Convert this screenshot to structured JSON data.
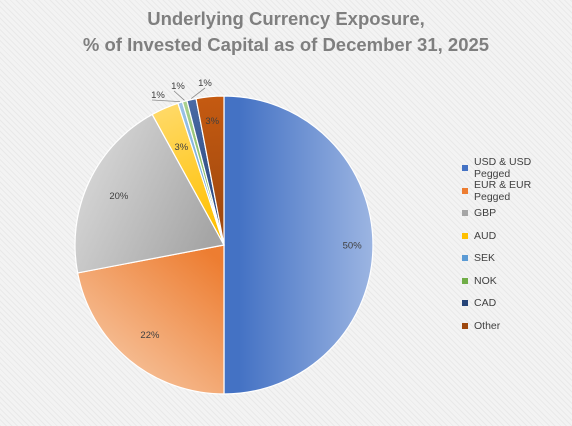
{
  "chart_data": {
    "type": "pie",
    "title_line1": "Underlying Currency Exposure,",
    "title_line2": "% of Invested Capital as of December 31, 2025",
    "start_angle_deg": 0,
    "direction": "clockwise",
    "legend_position": "right",
    "slices": [
      {
        "name": "USD & USD Pegged",
        "value": 50,
        "label": "50%",
        "color_from": "#4472c4",
        "color_to": "#9cb5e2"
      },
      {
        "name": "EUR & EUR Pegged",
        "value": 22,
        "label": "22%",
        "color_from": "#ed7d31",
        "color_to": "#f5b98d"
      },
      {
        "name": "GBP",
        "value": 20,
        "label": "20%",
        "color_from": "#a5a5a5",
        "color_to": "#d2d2d2"
      },
      {
        "name": "AUD",
        "value": 3,
        "label": "3%",
        "color_from": "#ffc000",
        "color_to": "#ffd966"
      },
      {
        "name": "SEK",
        "value": 0.5,
        "label": "1%",
        "color_from": "#5b9bd5",
        "color_to": "#9dc3e6"
      },
      {
        "name": "NOK",
        "value": 0.5,
        "label": "1%",
        "color_from": "#70ad47",
        "color_to": "#a9d18e"
      },
      {
        "name": "CAD",
        "value": 1,
        "label": "1%",
        "color_from": "#264478",
        "color_to": "#4a6aa5"
      },
      {
        "name": "Other",
        "value": 3,
        "label": "3%",
        "color_from": "#9e480e",
        "color_to": "#c55a11"
      }
    ]
  }
}
